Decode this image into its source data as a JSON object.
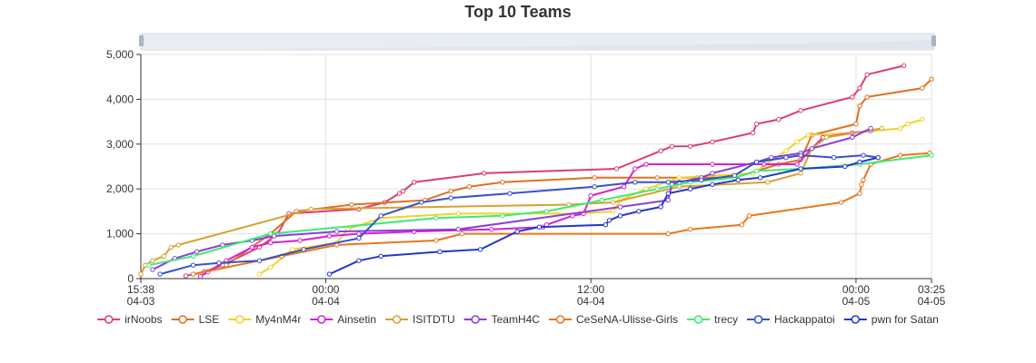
{
  "chart_data": {
    "type": "line",
    "title": "Top 10 Teams",
    "xlabel": "",
    "ylabel": "",
    "ylim": [
      0,
      5000
    ],
    "y_ticks": [
      0,
      1000,
      2000,
      3000,
      4000,
      5000
    ],
    "y_tick_labels": [
      "0",
      "1,000",
      "2,000",
      "3,000",
      "4,000",
      "5,000"
    ],
    "x_range": [
      "04-03 15:38",
      "04-05 03:25"
    ],
    "x_ticks": [
      {
        "t": "04-03 15:38",
        "time": "15:38",
        "date": "04-03"
      },
      {
        "t": "04-04 00:00",
        "time": "00:00",
        "date": "04-04"
      },
      {
        "t": "04-04 12:00",
        "time": "12:00",
        "date": "04-04"
      },
      {
        "t": "04-05 00:00",
        "time": "00:00",
        "date": "04-05"
      },
      {
        "t": "04-05 03:25",
        "time": "03:25",
        "date": "04-05"
      }
    ],
    "grid": true,
    "legend_position": "bottom",
    "data_zoom_slider": true,
    "series": [
      {
        "name": "irNoobs",
        "color": "#dc3c78",
        "points": [
          [
            "04-03 17:40",
            60
          ],
          [
            "04-03 18:30",
            150
          ],
          [
            "04-03 19:20",
            300
          ],
          [
            "04-03 21:00",
            700
          ],
          [
            "04-03 21:50",
            1000
          ],
          [
            "04-03 22:20",
            1450
          ],
          [
            "04-04 01:30",
            1550
          ],
          [
            "04-04 02:40",
            1700
          ],
          [
            "04-04 03:20",
            1900
          ],
          [
            "04-04 03:30",
            1950
          ],
          [
            "04-04 04:00",
            2150
          ],
          [
            "04-04 07:10",
            2350
          ],
          [
            "04-04 13:10",
            2450
          ],
          [
            "04-04 15:10",
            2850
          ],
          [
            "04-04 15:40",
            2950
          ],
          [
            "04-04 16:30",
            2950
          ],
          [
            "04-04 17:30",
            3050
          ],
          [
            "04-04 19:20",
            3250
          ],
          [
            "04-04 19:30",
            3450
          ],
          [
            "04-04 20:30",
            3550
          ],
          [
            "04-04 21:30",
            3750
          ],
          [
            "04-04 23:50",
            4050
          ],
          [
            "04-05 00:10",
            4250
          ],
          [
            "04-05 00:30",
            4550
          ],
          [
            "04-05 02:10",
            4750
          ]
        ]
      },
      {
        "name": "LSE",
        "color": "#e07020",
        "points": [
          [
            "04-03 19:30",
            300
          ],
          [
            "04-03 21:30",
            1000
          ],
          [
            "04-03 22:40",
            1500
          ],
          [
            "04-04 01:10",
            1650
          ],
          [
            "04-04 04:30",
            1750
          ],
          [
            "04-04 05:40",
            1950
          ],
          [
            "04-04 06:30",
            2050
          ],
          [
            "04-04 08:00",
            2150
          ],
          [
            "04-04 12:10",
            2250
          ],
          [
            "04-04 15:00",
            2250
          ],
          [
            "04-04 16:50",
            2250
          ],
          [
            "04-04 18:30",
            2250
          ],
          [
            "04-04 20:30",
            2550
          ],
          [
            "04-04 21:30",
            2650
          ],
          [
            "04-04 22:00",
            3200
          ],
          [
            "04-05 00:00",
            3450
          ],
          [
            "04-05 00:10",
            3850
          ],
          [
            "04-05 00:30",
            4050
          ],
          [
            "04-05 03:00",
            4250
          ],
          [
            "04-05 03:25",
            4450
          ]
        ]
      },
      {
        "name": "My4nM4r",
        "color": "#f2d22a",
        "points": [
          [
            "04-03 21:00",
            100
          ],
          [
            "04-03 21:30",
            250
          ],
          [
            "04-03 22:30",
            650
          ],
          [
            "04-04 00:30",
            800
          ],
          [
            "04-04 01:00",
            1100
          ],
          [
            "04-04 02:30",
            1350
          ],
          [
            "04-04 06:00",
            1450
          ],
          [
            "04-04 11:30",
            1450
          ],
          [
            "04-04 13:00",
            1500
          ],
          [
            "04-04 13:20",
            1750
          ],
          [
            "04-04 14:30",
            2000
          ],
          [
            "04-04 16:00",
            2250
          ],
          [
            "04-04 19:20",
            2350
          ],
          [
            "04-04 20:50",
            2850
          ],
          [
            "04-04 21:20",
            3050
          ],
          [
            "04-04 21:50",
            3200
          ],
          [
            "04-04 23:50",
            3250
          ],
          [
            "04-05 02:00",
            3350
          ],
          [
            "04-05 02:20",
            3450
          ],
          [
            "04-05 03:00",
            3550
          ]
        ]
      },
      {
        "name": "Ainsetin",
        "color": "#d61fd2",
        "points": [
          [
            "04-03 18:20",
            50
          ],
          [
            "04-03 18:40",
            150
          ],
          [
            "04-03 19:30",
            400
          ],
          [
            "04-03 20:40",
            700
          ],
          [
            "04-03 21:30",
            800
          ],
          [
            "04-03 22:50",
            850
          ],
          [
            "04-04 00:10",
            950
          ],
          [
            "04-04 01:30",
            1000
          ],
          [
            "04-04 04:00",
            1050
          ],
          [
            "04-04 07:30",
            1100
          ],
          [
            "04-04 09:50",
            1150
          ],
          [
            "04-04 10:00",
            1200
          ],
          [
            "04-04 11:10",
            1400
          ],
          [
            "04-04 11:40",
            1450
          ],
          [
            "04-04 12:00",
            1850
          ],
          [
            "04-04 13:30",
            2050
          ],
          [
            "04-04 14:00",
            2450
          ],
          [
            "04-04 14:30",
            2550
          ],
          [
            "04-04 17:30",
            2550
          ],
          [
            "04-04 19:50",
            2550
          ],
          [
            "04-04 21:20",
            2550
          ],
          [
            "04-04 22:00",
            2900
          ],
          [
            "04-04 22:30",
            3150
          ],
          [
            "04-04 23:50",
            3250
          ],
          [
            "04-05 00:40",
            3300
          ]
        ]
      },
      {
        "name": "ISITDTU",
        "color": "#d6a22f",
        "points": [
          [
            "04-03 15:38",
            100
          ],
          [
            "04-03 15:50",
            300
          ],
          [
            "04-03 16:10",
            400
          ],
          [
            "04-03 16:40",
            500
          ],
          [
            "04-03 17:00",
            700
          ],
          [
            "04-03 17:20",
            750
          ],
          [
            "04-03 23:20",
            1550
          ],
          [
            "04-04 11:00",
            1650
          ],
          [
            "04-04 13:00",
            1700
          ],
          [
            "04-04 16:00",
            2050
          ],
          [
            "04-04 20:00",
            2150
          ],
          [
            "04-04 21:30",
            2350
          ],
          [
            "04-04 22:00",
            2900
          ],
          [
            "04-04 22:40",
            3150
          ],
          [
            "04-05 01:10",
            3350
          ]
        ]
      },
      {
        "name": "TeamH4C",
        "color": "#8a3fdc",
        "points": [
          [
            "04-03 16:10",
            200
          ],
          [
            "04-03 17:10",
            450
          ],
          [
            "04-03 18:10",
            600
          ],
          [
            "04-03 19:20",
            750
          ],
          [
            "04-03 20:40",
            850
          ],
          [
            "04-03 21:40",
            950
          ],
          [
            "04-04 00:30",
            1050
          ],
          [
            "04-04 06:00",
            1100
          ],
          [
            "04-04 13:20",
            1600
          ],
          [
            "04-04 15:30",
            1750
          ],
          [
            "04-04 15:40",
            2100
          ],
          [
            "04-04 16:00",
            2150
          ],
          [
            "04-04 17:00",
            2250
          ],
          [
            "04-04 17:30",
            2350
          ],
          [
            "04-04 19:30",
            2600
          ],
          [
            "04-04 20:10",
            2700
          ],
          [
            "04-04 21:30",
            2800
          ],
          [
            "04-04 22:00",
            2900
          ],
          [
            "04-04 23:50",
            3150
          ],
          [
            "04-05 00:40",
            3350
          ]
        ]
      },
      {
        "name": "CeSeNA-Ulisse-Girls",
        "color": "#e8761b",
        "points": [
          [
            "04-03 18:00",
            100
          ],
          [
            "04-03 22:00",
            500
          ],
          [
            "04-04 00:30",
            750
          ],
          [
            "04-04 05:00",
            850
          ],
          [
            "04-04 06:10",
            1000
          ],
          [
            "04-04 15:30",
            1000
          ],
          [
            "04-04 16:30",
            1100
          ],
          [
            "04-04 18:50",
            1200
          ],
          [
            "04-04 19:10",
            1400
          ],
          [
            "04-04 23:20",
            1700
          ],
          [
            "04-05 00:10",
            1900
          ],
          [
            "04-05 00:15",
            2100
          ],
          [
            "04-05 00:20",
            2200
          ],
          [
            "04-05 00:40",
            2550
          ],
          [
            "04-05 02:00",
            2750
          ],
          [
            "04-05 03:20",
            2800
          ]
        ]
      },
      {
        "name": "trecy",
        "color": "#3ceb72",
        "points": [
          [
            "04-03 16:00",
            300
          ],
          [
            "04-03 18:00",
            500
          ],
          [
            "04-03 21:30",
            1000
          ],
          [
            "04-04 05:00",
            1350
          ],
          [
            "04-04 08:00",
            1400
          ],
          [
            "04-04 10:00",
            1500
          ],
          [
            "04-04 12:30",
            1750
          ],
          [
            "04-04 15:00",
            2000
          ],
          [
            "04-04 16:30",
            2150
          ],
          [
            "04-04 18:30",
            2250
          ],
          [
            "04-04 19:30",
            2400
          ],
          [
            "04-04 21:30",
            2450
          ],
          [
            "04-05 00:10",
            2550
          ],
          [
            "04-05 03:25",
            2750
          ]
        ]
      },
      {
        "name": "Hackappatoi",
        "color": "#3752c8",
        "points": [
          [
            "04-03 16:30",
            100
          ],
          [
            "04-03 18:00",
            300
          ],
          [
            "04-03 19:10",
            350
          ],
          [
            "04-03 21:00",
            400
          ],
          [
            "04-03 23:00",
            650
          ],
          [
            "04-04 01:30",
            900
          ],
          [
            "04-04 02:30",
            1400
          ],
          [
            "04-04 04:20",
            1700
          ],
          [
            "04-04 05:40",
            1800
          ],
          [
            "04-04 08:20",
            1900
          ],
          [
            "04-04 12:10",
            2050
          ],
          [
            "04-04 14:00",
            2150
          ],
          [
            "04-04 15:30",
            2150
          ],
          [
            "04-04 17:00",
            2200
          ],
          [
            "04-04 18:30",
            2300
          ],
          [
            "04-04 19:30",
            2600
          ],
          [
            "04-04 20:50",
            2700
          ],
          [
            "04-04 21:30",
            2750
          ],
          [
            "04-04 23:00",
            2700
          ],
          [
            "04-05 00:20",
            2750
          ],
          [
            "04-05 01:00",
            2700
          ]
        ]
      },
      {
        "name": "pwn for Satan",
        "color": "#2238c8",
        "points": [
          [
            "04-04 00:10",
            100
          ],
          [
            "04-04 01:30",
            400
          ],
          [
            "04-04 02:30",
            500
          ],
          [
            "04-04 05:10",
            600
          ],
          [
            "04-04 07:00",
            650
          ],
          [
            "04-04 08:40",
            1050
          ],
          [
            "04-04 09:40",
            1150
          ],
          [
            "04-04 12:40",
            1200
          ],
          [
            "04-04 12:50",
            1300
          ],
          [
            "04-04 13:20",
            1400
          ],
          [
            "04-04 14:10",
            1500
          ],
          [
            "04-04 15:10",
            1600
          ],
          [
            "04-04 15:30",
            1900
          ],
          [
            "04-04 16:30",
            2000
          ],
          [
            "04-04 17:30",
            2100
          ],
          [
            "04-04 18:40",
            2200
          ],
          [
            "04-04 19:40",
            2250
          ],
          [
            "04-04 21:30",
            2450
          ],
          [
            "04-04 23:30",
            2500
          ],
          [
            "04-05 00:10",
            2600
          ],
          [
            "04-05 01:00",
            2700
          ]
        ]
      }
    ]
  }
}
